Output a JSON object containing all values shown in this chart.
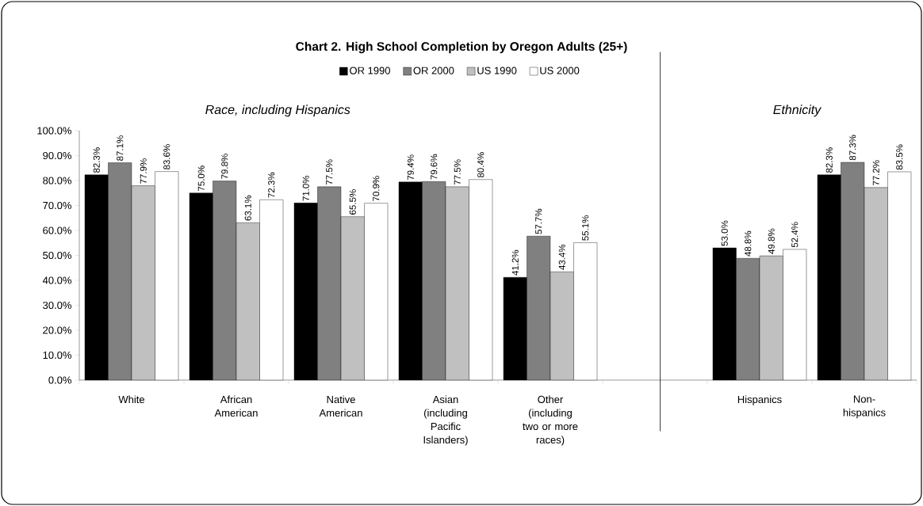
{
  "chart_data": {
    "type": "bar",
    "title": "Chart 2. High School Completion by Oregon Adults (25+)",
    "categories": [
      "White",
      "African American",
      "Native American",
      "Asian (including Pacific Islanders)",
      "Other (including two or more races)",
      null,
      "Hispanics",
      "Non-hispanics"
    ],
    "series": [
      {
        "name": "OR 1990",
        "color": "#000000",
        "values": [
          82.3,
          75.0,
          71.0,
          79.4,
          41.2,
          null,
          53.0,
          82.3
        ],
        "value_labels": [
          "82.3%",
          "75.0%",
          "71.0%",
          "79.4%",
          "41.2%",
          null,
          "53.0%",
          "82.3%"
        ]
      },
      {
        "name": "OR 2000",
        "color": "#808080",
        "values": [
          87.1,
          79.8,
          77.5,
          79.6,
          57.7,
          null,
          48.8,
          87.3
        ],
        "value_labels": [
          "87.1%",
          "79.8%",
          "77.5%",
          "79.6%",
          "57.7%",
          null,
          "48.8%",
          "87.3%"
        ]
      },
      {
        "name": "US 1990",
        "color": "#c0c0c0",
        "values": [
          77.9,
          63.1,
          65.5,
          77.5,
          43.4,
          null,
          49.8,
          77.2
        ],
        "value_labels": [
          "77.9%",
          "63.1%",
          "65.5%",
          "77.5%",
          "43.4%",
          null,
          "49.8%",
          "77.2%"
        ]
      },
      {
        "name": "US 2000",
        "color": "#ffffff",
        "values": [
          83.6,
          72.3,
          70.9,
          80.4,
          55.1,
          null,
          52.4,
          83.5
        ],
        "value_labels": [
          "83.6%",
          "72.3%",
          "70.9%",
          "80.4%",
          "55.1%",
          null,
          "52.4%",
          "83.5%"
        ]
      }
    ],
    "ylim": [
      0,
      100
    ],
    "yticks": [
      {
        "value": 0,
        "label": "0.0%"
      },
      {
        "value": 10,
        "label": "10.0%"
      },
      {
        "value": 20,
        "label": "20.0%"
      },
      {
        "value": 30,
        "label": "30.0%"
      },
      {
        "value": 40,
        "label": "40.0%"
      },
      {
        "value": 50,
        "label": "50.0%"
      },
      {
        "value": 60,
        "label": "60.0%"
      },
      {
        "value": 70,
        "label": "70.0%"
      },
      {
        "value": 80,
        "label": "80.0%"
      },
      {
        "value": 90,
        "label": "90.0%"
      },
      {
        "value": 100,
        "label": "100.0%"
      }
    ],
    "annotations": [
      "Race, including Hispanics",
      "Ethnicity"
    ],
    "legend": "top"
  }
}
